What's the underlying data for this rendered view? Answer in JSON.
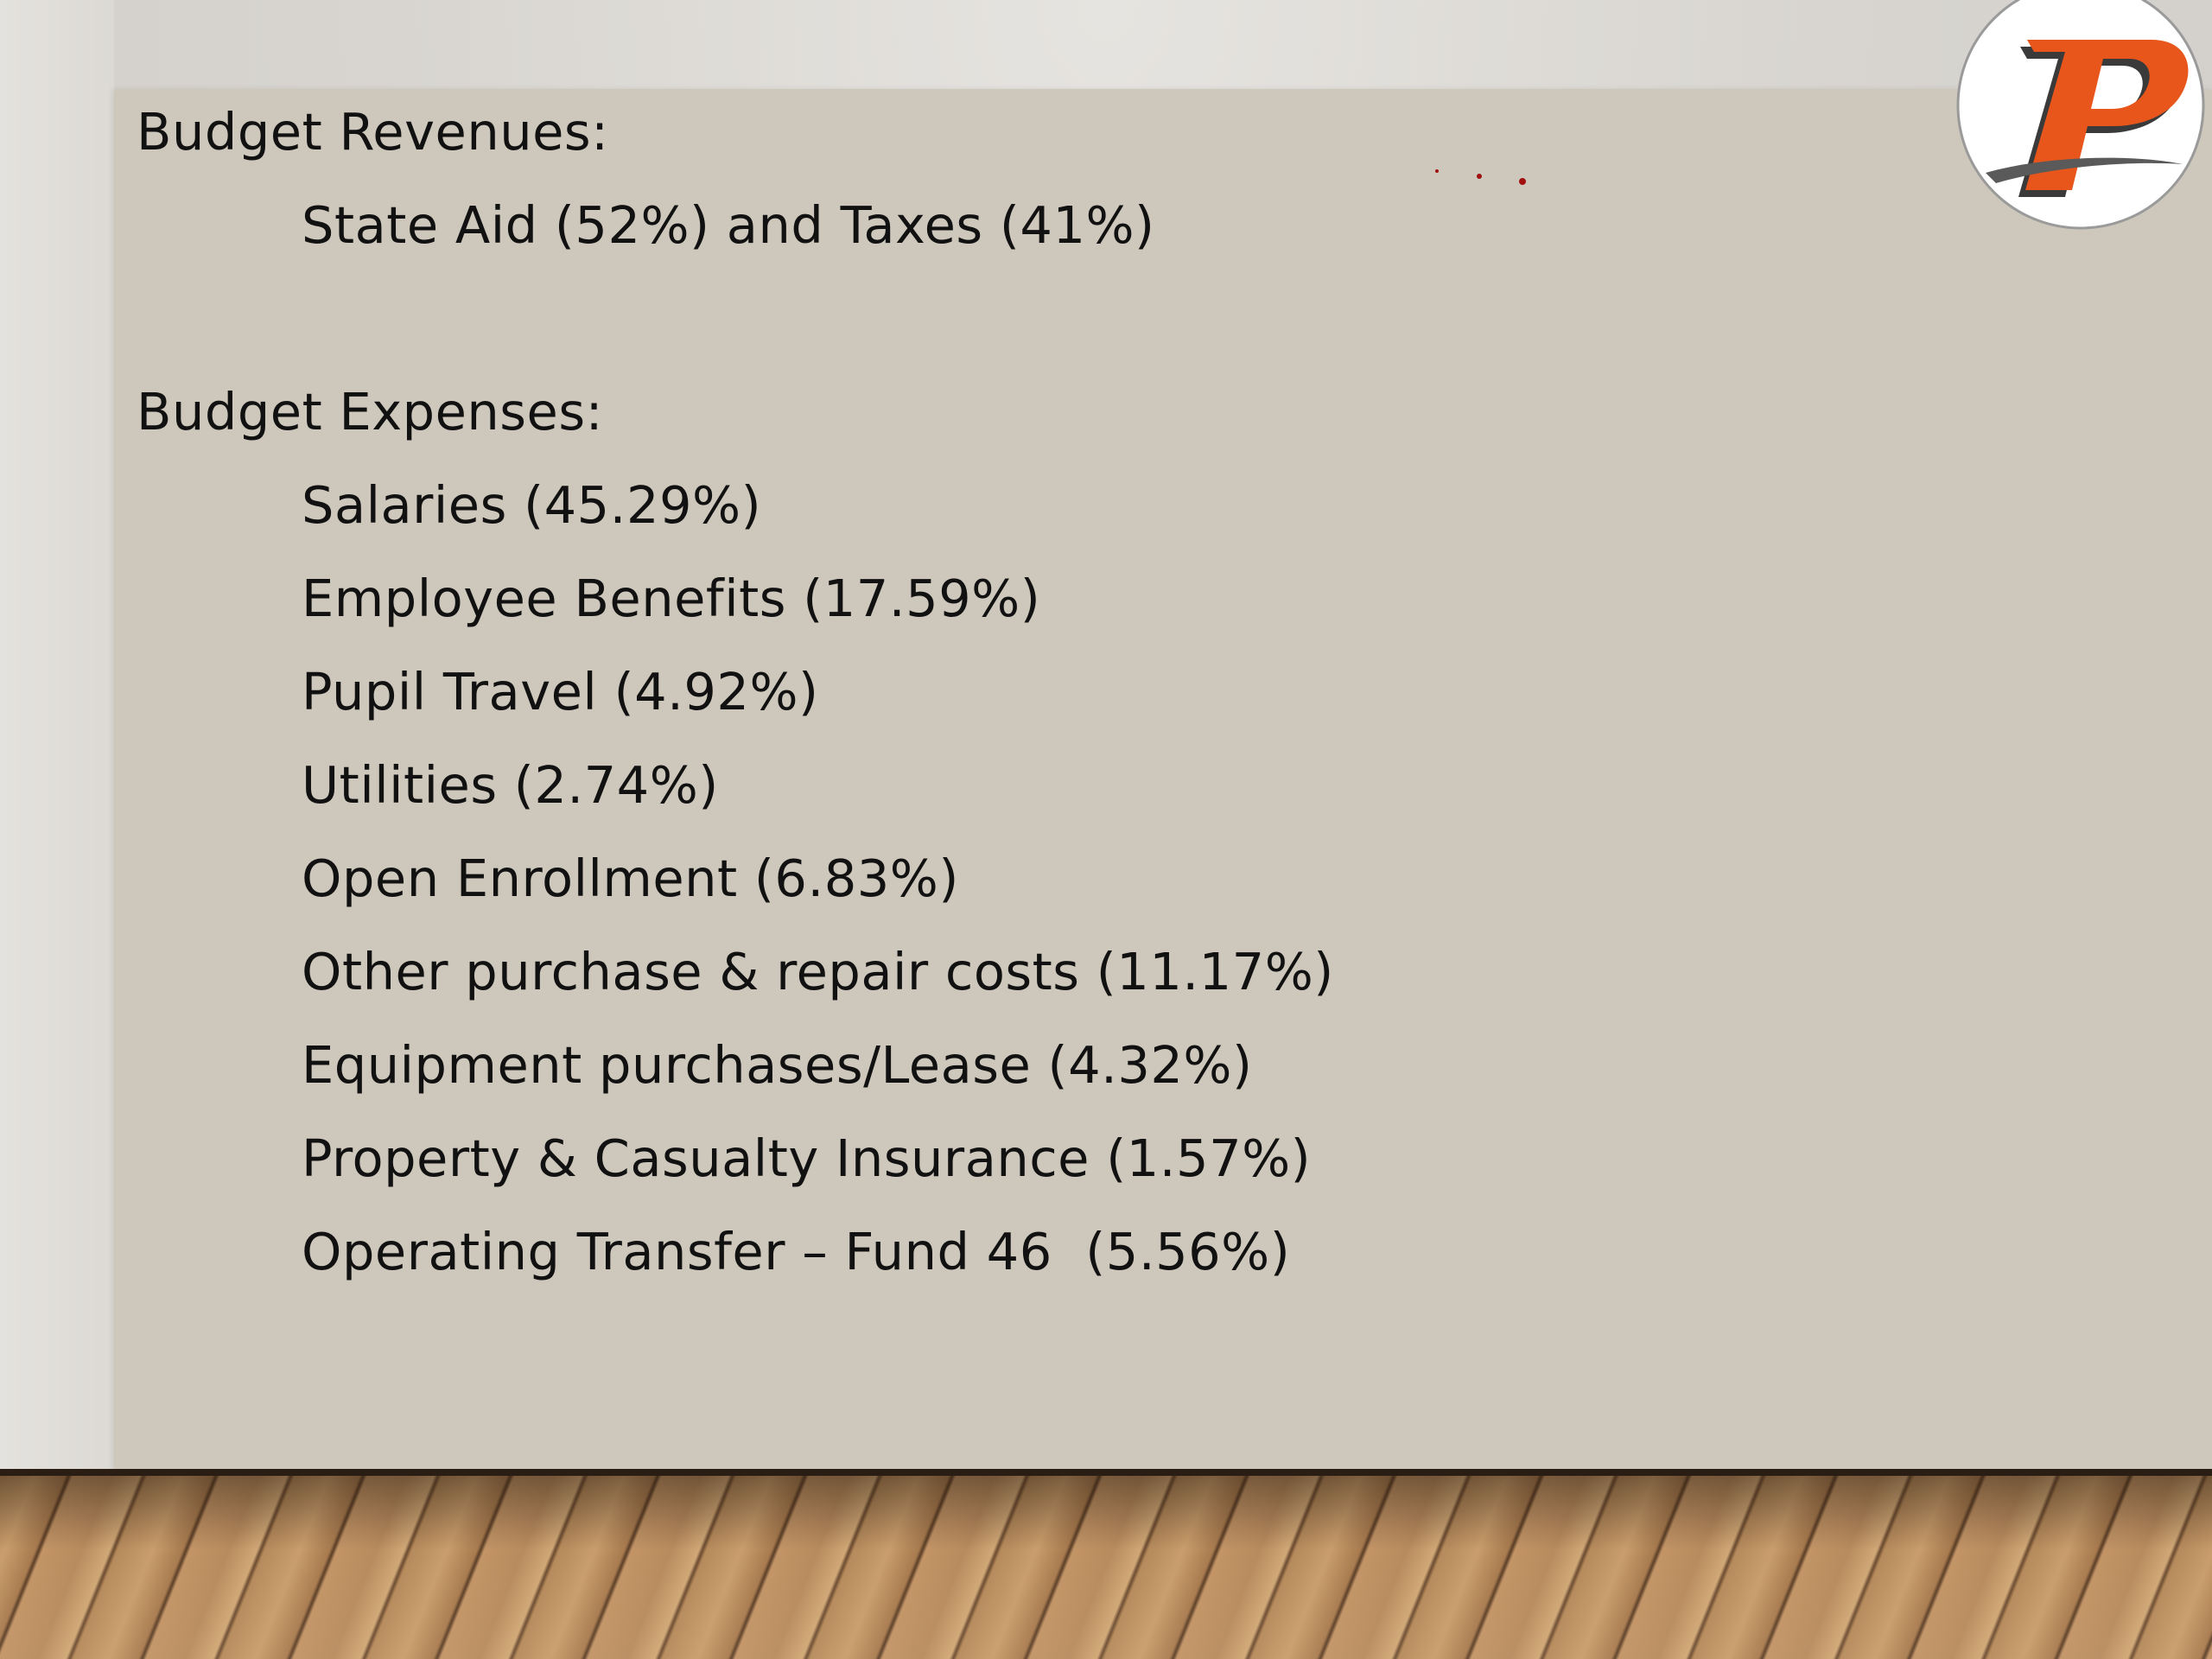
{
  "slide": {
    "revenues_heading": "Budget Revenues:",
    "revenues_line": "State Aid (52%) and Taxes (41%)",
    "expenses_heading": "Budget Expenses:",
    "expense_items": [
      "Salaries (45.29%)",
      "Employee Benefits (17.59%)",
      "Pupil Travel (4.92%)",
      "Utilities (2.74%)",
      "Open Enrollment (6.83%)",
      "Other purchase & repair costs (11.17%)",
      "Equipment purchases/Lease (4.32%)",
      "Property & Casualty Insurance (1.57%)",
      "Operating Transfer – Fund 46  (5.56%)"
    ]
  },
  "logo": {
    "icon": "letter-p-logo-icon",
    "accent_color": "#e8561c",
    "outline_color": "#3a3a3a"
  },
  "colors": {
    "panel": "#cec8bc",
    "text": "#111111",
    "marks": "#a01010"
  }
}
